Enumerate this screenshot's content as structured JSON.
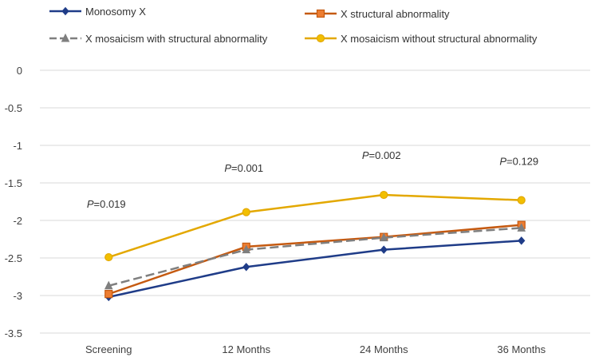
{
  "chart_data": {
    "type": "line",
    "title": "",
    "xlabel": "",
    "ylabel": "",
    "categories": [
      "Screening",
      "12 Months",
      "24 Months",
      "36 Months"
    ],
    "ylim": [
      -3.5,
      0
    ],
    "yticks": [
      0,
      -0.5,
      -1,
      -1.5,
      -2,
      -2.5,
      -3,
      -3.5
    ],
    "ytick_labels": [
      "0",
      "-0.5",
      "-1",
      "-1.5",
      "-2",
      "-2.5",
      "-3",
      "-3.5"
    ],
    "grid": "horizontal",
    "legend_position": "top",
    "series": [
      {
        "name": "Monosomy X",
        "color": "#1F3C88",
        "marker": "diamond",
        "dash": "solid",
        "values": [
          -3.02,
          -2.62,
          -2.39,
          -2.27
        ]
      },
      {
        "name": "X structural abnormality",
        "color": "#C55A11",
        "marker": "square",
        "dash": "solid",
        "values": [
          -2.98,
          -2.35,
          -2.22,
          -2.06
        ]
      },
      {
        "name": "X mosaicism with structural abnormality",
        "color": "#7F7F7F",
        "marker": "triangle",
        "dash": "dashed",
        "values": [
          -2.87,
          -2.39,
          -2.23,
          -2.1
        ]
      },
      {
        "name": "X mosaicism without structural abnormality",
        "color": "#E3A800",
        "marker": "circle",
        "dash": "solid",
        "values": [
          -2.49,
          -1.89,
          -1.66,
          -1.73
        ]
      }
    ],
    "annotations": [
      {
        "category": "Screening",
        "italic": "P",
        "text": "=0.019",
        "y": -1.83
      },
      {
        "category": "12 Months",
        "italic": "P",
        "text": "=0.001",
        "y": -1.35
      },
      {
        "category": "24 Months",
        "italic": "P",
        "text": "=0.002",
        "y": -1.18
      },
      {
        "category": "36 Months",
        "italic": "P",
        "text": "=0.129",
        "y": -1.26
      }
    ]
  }
}
